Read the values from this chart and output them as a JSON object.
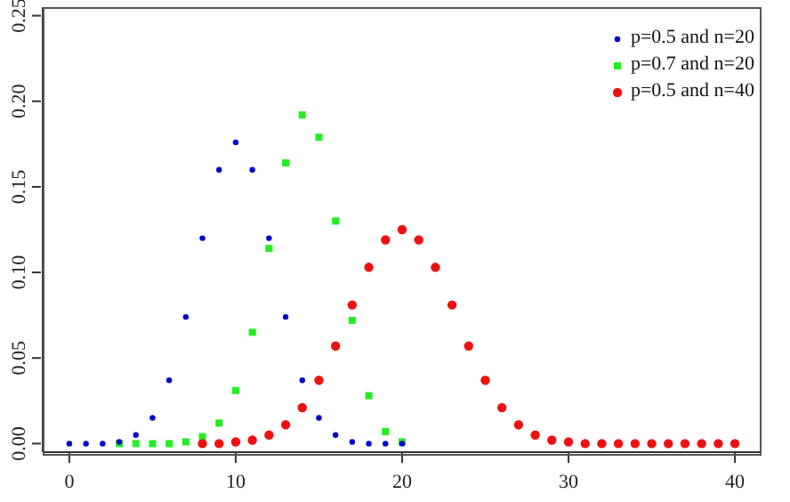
{
  "chart_data": {
    "type": "scatter",
    "xlim": [
      -1.6,
      41.6
    ],
    "xticks": [
      0,
      10,
      20,
      30,
      40
    ],
    "ylim": [
      -0.005,
      0.255
    ],
    "yticks": [
      {
        "value": 0,
        "label": "0.00"
      },
      {
        "value": 0.05,
        "label": "0.05"
      },
      {
        "value": 0.1,
        "label": "0.10"
      },
      {
        "value": 0.15,
        "label": "0.15"
      },
      {
        "value": 0.2,
        "label": "0.20"
      },
      {
        "value": 0.25,
        "label": "0.25"
      }
    ],
    "grid": false,
    "legend": "top right",
    "series": [
      {
        "name": "p=0.5 and n=20",
        "color": "#0000cc",
        "marker": "circle",
        "x": [
          0,
          1,
          2,
          3,
          4,
          5,
          6,
          7,
          8,
          9,
          10,
          11,
          12,
          13,
          14,
          15,
          16,
          17,
          18,
          19,
          20
        ],
        "values": [
          0,
          0,
          0,
          0.001,
          0.005,
          0.015,
          0.037,
          0.074,
          0.12,
          0.16,
          0.176,
          0.16,
          0.12,
          0.074,
          0.037,
          0.015,
          0.005,
          0.001,
          0,
          0,
          0
        ]
      },
      {
        "name": "p=0.7 and n=20",
        "color": "#22ee22",
        "marker": "square",
        "x": [
          3,
          4,
          5,
          6,
          7,
          8,
          9,
          10,
          11,
          12,
          13,
          14,
          15,
          16,
          17,
          18,
          19,
          20
        ],
        "values": [
          0,
          0,
          0,
          0,
          0.001,
          0.004,
          0.012,
          0.031,
          0.065,
          0.114,
          0.164,
          0.192,
          0.179,
          0.13,
          0.072,
          0.028,
          0.007,
          0.001
        ]
      },
      {
        "name": "p=0.5 and n=40",
        "color": "#ee1111",
        "marker": "circle",
        "x": [
          8,
          9,
          10,
          11,
          12,
          13,
          14,
          15,
          16,
          17,
          18,
          19,
          20,
          21,
          22,
          23,
          24,
          25,
          26,
          27,
          28,
          29,
          30,
          31,
          32,
          33,
          34,
          35,
          36,
          37,
          38,
          39,
          40
        ],
        "values": [
          0,
          0,
          0.001,
          0.002,
          0.005,
          0.011,
          0.021,
          0.037,
          0.057,
          0.081,
          0.103,
          0.119,
          0.125,
          0.119,
          0.103,
          0.081,
          0.057,
          0.037,
          0.021,
          0.011,
          0.005,
          0.002,
          0.001,
          0,
          0,
          0,
          0,
          0,
          0,
          0,
          0,
          0,
          0
        ]
      }
    ]
  }
}
